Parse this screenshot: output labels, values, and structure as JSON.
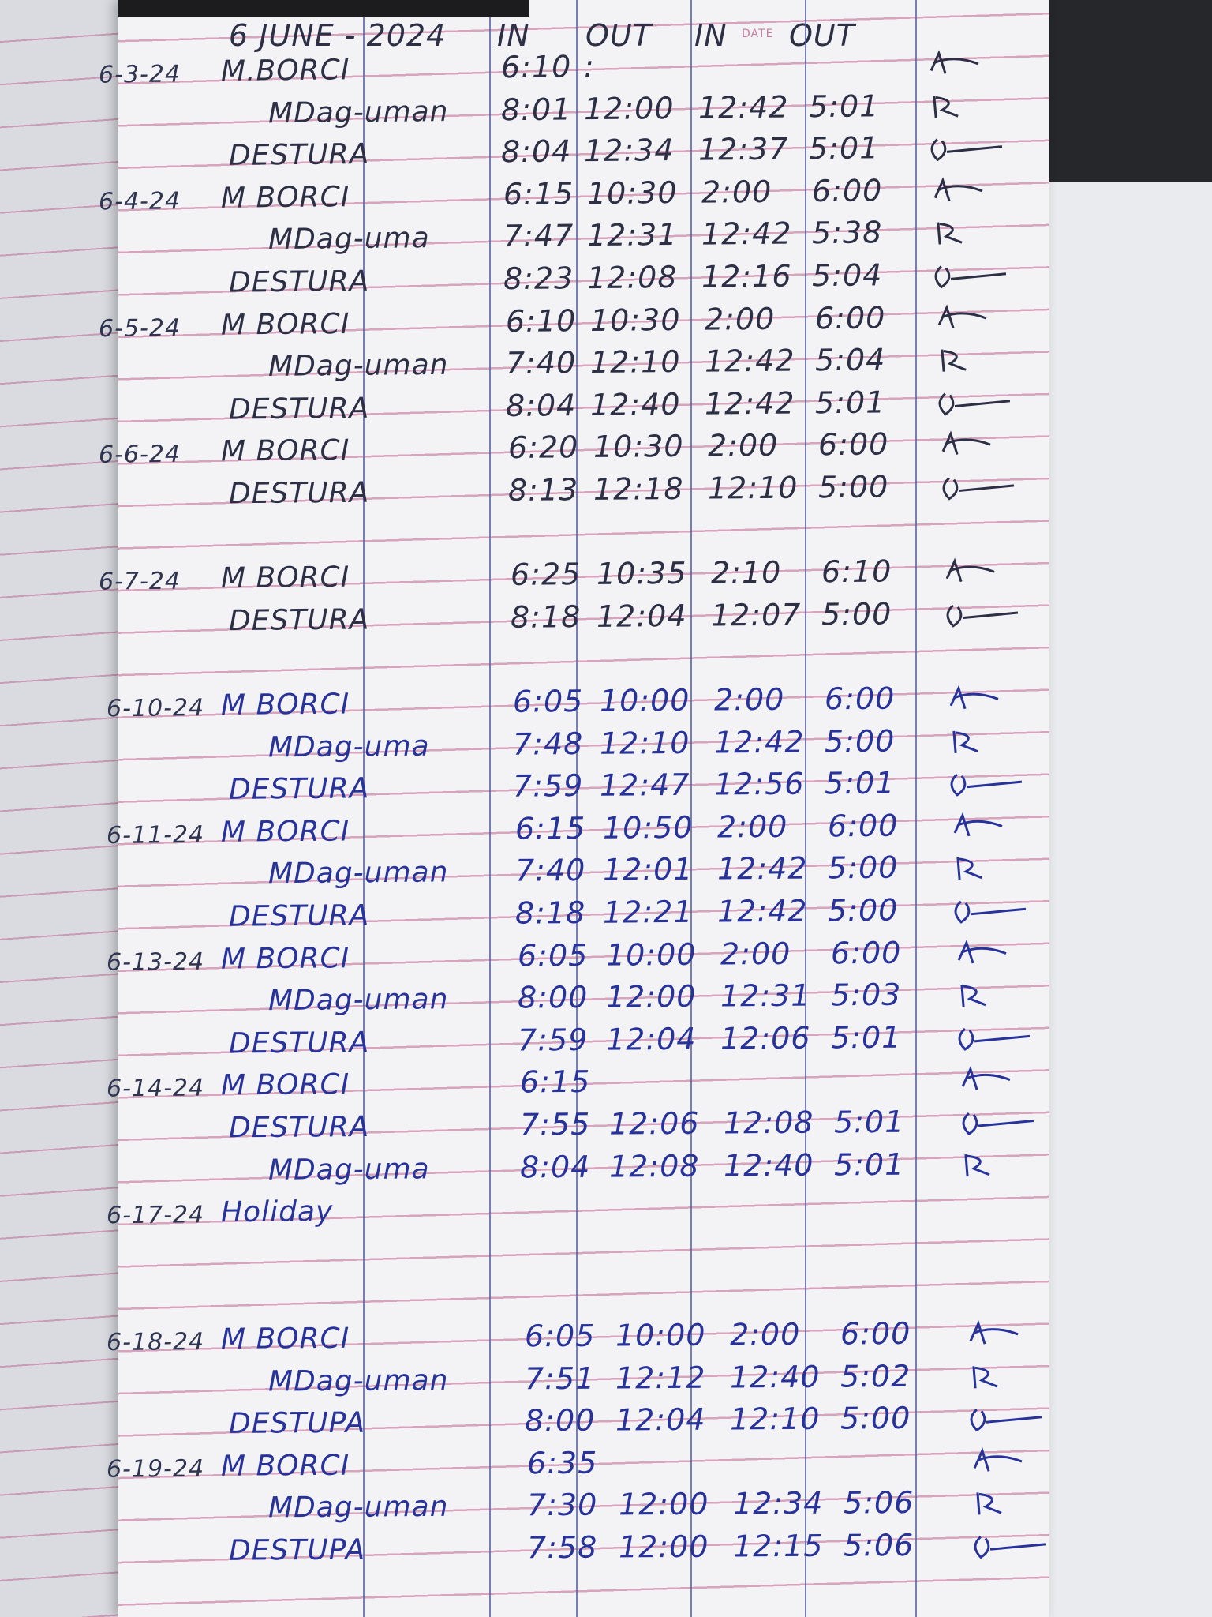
{
  "header": {
    "month": "6 JUNE - 2024",
    "in1": "IN",
    "out1": "OUT",
    "in2": "IN",
    "date_mark": "DATE",
    "out2": "OUT"
  },
  "entries": [
    {
      "date": "6-3-24",
      "rows": [
        {
          "name": "M.BORCI",
          "in1": "6:10",
          "out1": ":",
          "in2": "",
          "out2": ""
        },
        {
          "name": "MDag-uman",
          "in1": "8:01",
          "out1": "12:00",
          "in2": "12:42",
          "out2": "5:01"
        },
        {
          "name": "DESTURA",
          "in1": "8:04",
          "out1": "12:34",
          "in2": "12:37",
          "out2": "5:01"
        }
      ]
    },
    {
      "date": "6-4-24",
      "rows": [
        {
          "name": "M BORCI",
          "in1": "6:15",
          "out1": "10:30",
          "in2": "2:00",
          "out2": "6:00"
        },
        {
          "name": "MDag-uma",
          "in1": "7:47",
          "out1": "12:31",
          "in2": "12:42",
          "out2": "5:38"
        },
        {
          "name": "DESTURA",
          "in1": "8:23",
          "out1": "12:08",
          "in2": "12:16",
          "out2": "5:04"
        }
      ]
    },
    {
      "date": "6-5-24",
      "rows": [
        {
          "name": "M BORCI",
          "in1": "6:10",
          "out1": "10:30",
          "in2": "2:00",
          "out2": "6:00"
        },
        {
          "name": "MDag-uman",
          "in1": "7:40",
          "out1": "12:10",
          "in2": "12:42",
          "out2": "5:04"
        },
        {
          "name": "DESTURA",
          "in1": "8:04",
          "out1": "12:40",
          "in2": "12:42",
          "out2": "5:01"
        }
      ]
    },
    {
      "date": "6-6-24",
      "rows": [
        {
          "name": "M BORCI",
          "in1": "6:20",
          "out1": "10:30",
          "in2": "2:00",
          "out2": "6:00"
        },
        {
          "name": "DESTURA",
          "in1": "8:13",
          "out1": "12:18",
          "in2": "12:10",
          "out2": "5:00"
        }
      ]
    },
    {
      "date": "6-7-24",
      "rows": [
        {
          "name": "M BORCI",
          "in1": "6:25",
          "out1": "10:35",
          "in2": "2:10",
          "out2": "6:10"
        },
        {
          "name": "DESTURA",
          "in1": "8:18",
          "out1": "12:04",
          "in2": "12:07",
          "out2": "5:00"
        }
      ]
    },
    {
      "date": "6-10-24",
      "rows": [
        {
          "name": "M BORCI",
          "in1": "6:05",
          "out1": "10:00",
          "in2": "2:00",
          "out2": "6:00"
        },
        {
          "name": "MDag-uma",
          "in1": "7:48",
          "out1": "12:10",
          "in2": "12:42",
          "out2": "5:00"
        },
        {
          "name": "DESTURA",
          "in1": "7:59",
          "out1": "12:47",
          "in2": "12:56",
          "out2": "5:01"
        }
      ]
    },
    {
      "date": "6-11-24",
      "rows": [
        {
          "name": "M BORCI",
          "in1": "6:15",
          "out1": "10:50",
          "in2": "2:00",
          "out2": "6:00"
        },
        {
          "name": "MDag-uman",
          "in1": "7:40",
          "out1": "12:01",
          "in2": "12:42",
          "out2": "5:00"
        },
        {
          "name": "DESTURA",
          "in1": "8:18",
          "out1": "12:21",
          "in2": "12:42",
          "out2": "5:00"
        }
      ]
    },
    {
      "date": "6-13-24",
      "rows": [
        {
          "name": "M BORCI",
          "in1": "6:05",
          "out1": "10:00",
          "in2": "2:00",
          "out2": "6:00"
        },
        {
          "name": "MDag-uman",
          "in1": "8:00",
          "out1": "12:00",
          "in2": "12:31",
          "out2": "5:03"
        },
        {
          "name": "DESTURA",
          "in1": "7:59",
          "out1": "12:04",
          "in2": "12:06",
          "out2": "5:01"
        }
      ]
    },
    {
      "date": "6-14-24",
      "rows": [
        {
          "name": "M BORCI",
          "in1": "6:15",
          "out1": "",
          "in2": "",
          "out2": ""
        },
        {
          "name": "DESTURA",
          "in1": "7:55",
          "out1": "12:06",
          "in2": "12:08",
          "out2": "5:01"
        },
        {
          "name": "MDag-uma",
          "in1": "8:04",
          "out1": "12:08",
          "in2": "12:40",
          "out2": "5:01"
        }
      ]
    },
    {
      "date": "6-17-24",
      "rows": [
        {
          "name": "Holiday",
          "in1": "",
          "out1": "",
          "in2": "",
          "out2": ""
        }
      ]
    },
    {
      "date": "6-18-24",
      "rows": [
        {
          "name": "M BORCI",
          "in1": "6:05",
          "out1": "10:00",
          "in2": "2:00",
          "out2": "6:00"
        },
        {
          "name": "MDag-uman",
          "in1": "7:51",
          "out1": "12:12",
          "in2": "12:40",
          "out2": "5:02"
        },
        {
          "name": "DESTUPA",
          "in1": "8:00",
          "out1": "12:04",
          "in2": "12:10",
          "out2": "5:00"
        }
      ]
    },
    {
      "date": "6-19-24",
      "rows": [
        {
          "name": "M BORCI",
          "in1": "6:35",
          "out1": "",
          "in2": "",
          "out2": ""
        },
        {
          "name": "MDag-uman",
          "in1": "7:30",
          "out1": "12:00",
          "in2": "12:34",
          "out2": "5:06"
        },
        {
          "name": "DESTUPA",
          "in1": "7:58",
          "out1": "12:00",
          "in2": "12:15",
          "out2": "5:06"
        }
      ]
    }
  ],
  "colors": {
    "ink_black": "#2c2f45",
    "ink_blue": "#27339a",
    "rule_pink": "#d7a3bd",
    "column_blue": "#5560a8"
  }
}
